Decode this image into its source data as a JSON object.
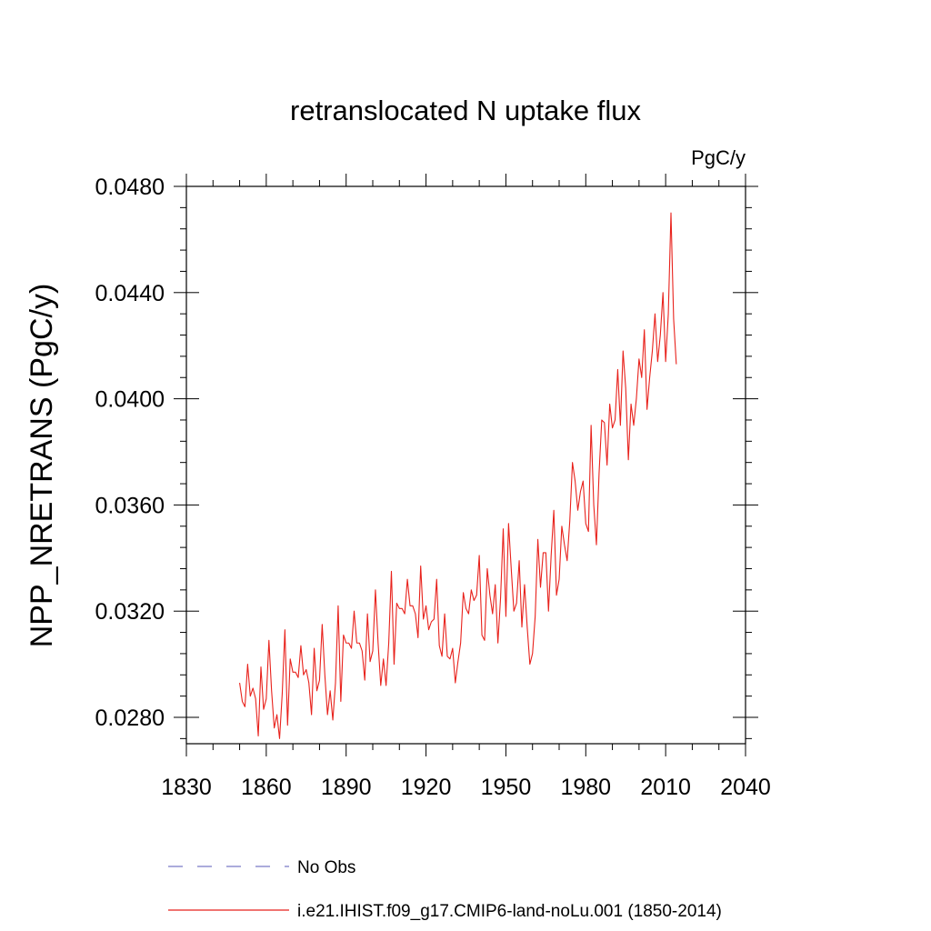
{
  "chart_data": {
    "type": "line",
    "title": "retranslocated N uptake flux",
    "units_label": "PgC/y",
    "ylabel": "NPP_NRETRANS  (PgC/y)",
    "xlabel": "",
    "xlim": [
      1830,
      2040
    ],
    "ylim": [
      0.027,
      0.0485
    ],
    "x_ticks": [
      1830,
      1860,
      1890,
      1920,
      1950,
      1980,
      2010,
      2040
    ],
    "x_tick_labels": [
      "1830",
      "1860",
      "1890",
      "1920",
      "1950",
      "1980",
      "2010",
      "2040"
    ],
    "y_ticks": [
      0.028,
      0.032,
      0.036,
      0.04,
      0.044,
      0.048
    ],
    "y_tick_labels": [
      "0.0280",
      "0.0320",
      "0.0360",
      "0.0400",
      "0.0440",
      "0.0480"
    ],
    "grid": false,
    "legend_position": "bottom",
    "legend": [
      {
        "label": "No Obs",
        "color": "#7b7bc8",
        "style": "dashed"
      },
      {
        "label": "i.e21.IHIST.f09_g17.CMIP6-land-noLu.001 (1850-2014)",
        "color": "#e8221c",
        "style": "solid"
      }
    ],
    "series": [
      {
        "name": "i.e21.IHIST.f09_g17.CMIP6-land-noLu.001 (1850-2014)",
        "color": "#e8221c",
        "x_start": 1850,
        "x_step": 1,
        "values": [
          0.0293,
          0.0286,
          0.0284,
          0.03,
          0.0288,
          0.0291,
          0.0287,
          0.0273,
          0.0299,
          0.0283,
          0.0287,
          0.0309,
          0.029,
          0.0276,
          0.0281,
          0.0272,
          0.0289,
          0.0313,
          0.0277,
          0.0302,
          0.0297,
          0.0297,
          0.0295,
          0.0307,
          0.0296,
          0.0298,
          0.0293,
          0.0281,
          0.0306,
          0.029,
          0.0294,
          0.0315,
          0.0296,
          0.0281,
          0.029,
          0.0279,
          0.0293,
          0.0322,
          0.0286,
          0.0311,
          0.0308,
          0.0308,
          0.0306,
          0.032,
          0.0308,
          0.0308,
          0.0305,
          0.0294,
          0.0319,
          0.0301,
          0.0305,
          0.0328,
          0.0308,
          0.0292,
          0.0302,
          0.0292,
          0.0308,
          0.0335,
          0.03,
          0.0323,
          0.0321,
          0.0321,
          0.0319,
          0.0332,
          0.0322,
          0.0322,
          0.0319,
          0.031,
          0.0337,
          0.0317,
          0.0322,
          0.0313,
          0.0316,
          0.0317,
          0.0332,
          0.0307,
          0.0303,
          0.0319,
          0.0303,
          0.0302,
          0.0306,
          0.0293,
          0.0301,
          0.0308,
          0.0327,
          0.0321,
          0.0319,
          0.0328,
          0.0324,
          0.0326,
          0.0341,
          0.0311,
          0.0309,
          0.0336,
          0.0326,
          0.0319,
          0.033,
          0.0308,
          0.0325,
          0.0351,
          0.0318,
          0.0353,
          0.0336,
          0.032,
          0.0323,
          0.0339,
          0.0314,
          0.033,
          0.0314,
          0.03,
          0.0304,
          0.0318,
          0.0347,
          0.0329,
          0.0342,
          0.0342,
          0.032,
          0.0341,
          0.0358,
          0.0326,
          0.0332,
          0.0352,
          0.0345,
          0.0339,
          0.0354,
          0.0376,
          0.0369,
          0.0358,
          0.0365,
          0.0369,
          0.0353,
          0.035,
          0.039,
          0.036,
          0.0345,
          0.0372,
          0.0392,
          0.0391,
          0.0375,
          0.0398,
          0.0389,
          0.0392,
          0.0411,
          0.039,
          0.0418,
          0.0404,
          0.0377,
          0.0398,
          0.039,
          0.04,
          0.0415,
          0.0408,
          0.0426,
          0.0396,
          0.0408,
          0.0418,
          0.0432,
          0.0414,
          0.0424,
          0.044,
          0.0414,
          0.0432,
          0.047,
          0.043,
          0.0413
        ]
      }
    ]
  }
}
